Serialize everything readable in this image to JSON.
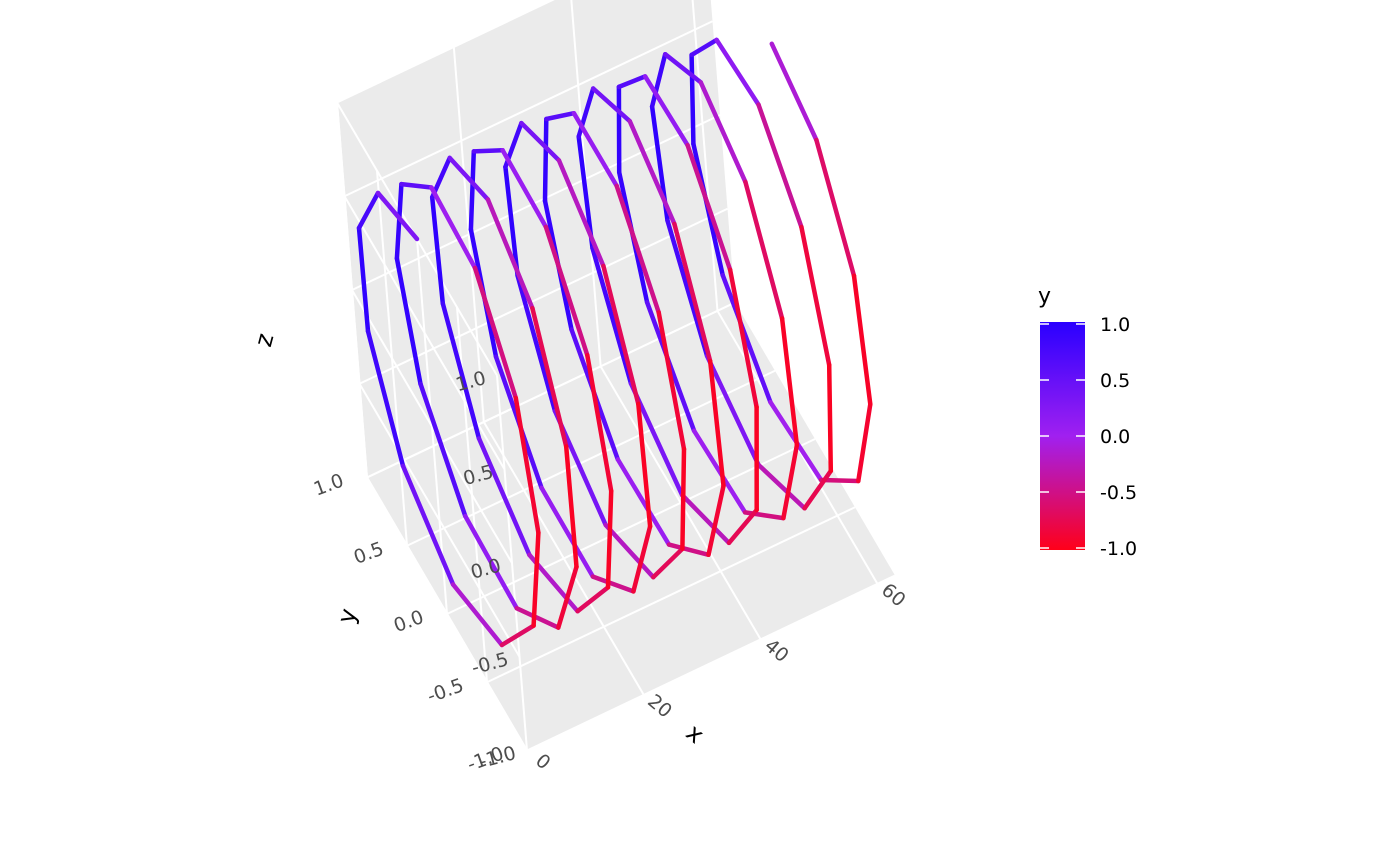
{
  "chart_data": {
    "type": "line",
    "subtype": "3d-helix",
    "title": "",
    "xlabel": "x",
    "ylabel": "y",
    "zlabel": "z",
    "xlim": [
      0,
      63
    ],
    "ylim": [
      -1,
      1
    ],
    "zlim": [
      -1,
      1
    ],
    "x_ticks": [
      "0",
      "20",
      "40",
      "60"
    ],
    "y_ticks": [
      "-1.0",
      "-0.5",
      "0.0",
      "0.5",
      "1.0"
    ],
    "z_ticks": [
      "-1.0",
      "-0.5",
      "0.0",
      "0.5",
      "1.0"
    ],
    "series": [
      {
        "x_from": 0,
        "x_to": 63,
        "x_step": 0.6,
        "y_function": "sin(x)",
        "z_function": "cos(x)",
        "color_by": "y"
      }
    ],
    "legend": {
      "title": "y",
      "ticks": [
        "1.0",
        "0.5",
        "0.0",
        "-0.5",
        "-1.0"
      ],
      "colors": {
        "high": "#2a00ff",
        "mid": "#a020f0",
        "low": "#ff0019"
      },
      "position": "right"
    },
    "panel_color": "#ebebeb",
    "grid_color": "#ffffff",
    "grid": true
  }
}
